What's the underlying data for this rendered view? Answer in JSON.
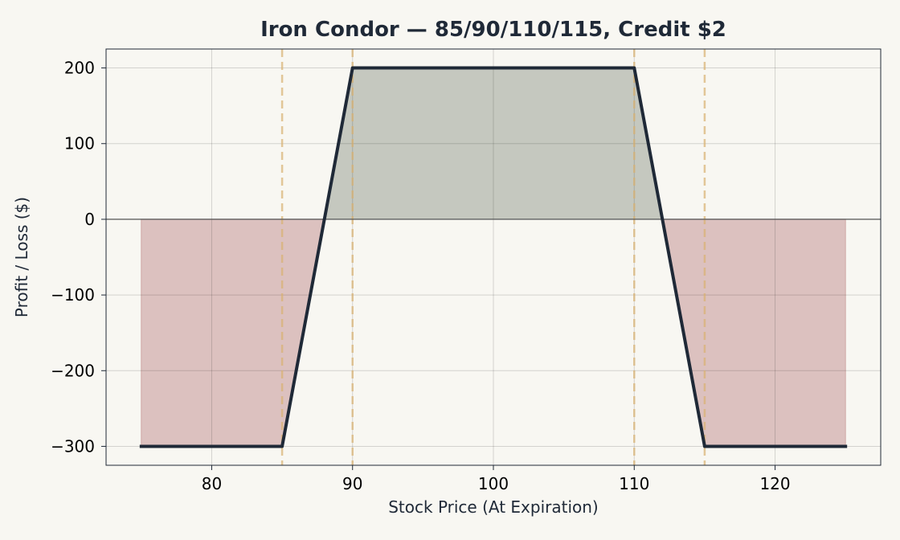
{
  "chart_data": {
    "type": "line",
    "title": "Iron Condor — 85/90/110/115, Credit $2",
    "xlabel": "Stock Price (At Expiration)",
    "ylabel": "Profit / Loss ($)",
    "xlim": [
      72.5,
      127.5
    ],
    "ylim": [
      -325,
      225
    ],
    "x_ticks": [
      80,
      90,
      100,
      110,
      120
    ],
    "y_ticks": [
      200,
      100,
      0,
      -100,
      -200,
      -300
    ],
    "x_tick_labels": [
      "80",
      "90",
      "100",
      "110",
      "120"
    ],
    "y_tick_labels": [
      "200",
      "100",
      "0",
      "−100",
      "−200",
      "−300"
    ],
    "grid": true,
    "strikes": [
      85,
      90,
      110,
      115
    ],
    "series": [
      {
        "x": [
          75,
          85,
          90,
          110,
          115,
          125
        ],
        "y": [
          -300,
          -300,
          200,
          200,
          -300,
          -300
        ]
      }
    ],
    "colors": {
      "payoff_line": "#1f2937",
      "profit_fill": "#c5c8bf",
      "loss_fill": "#dcc1bf",
      "strike_line": "#d8b070",
      "background": "#f8f7f2"
    }
  }
}
